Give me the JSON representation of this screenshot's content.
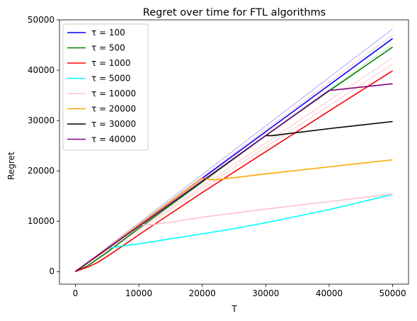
{
  "chart_data": {
    "type": "line",
    "title": "Regret over time for FTL algorithms",
    "xlabel": "T",
    "ylabel": "Regret",
    "xlim": [
      -2500,
      52500
    ],
    "ylim": [
      -2500,
      50000
    ],
    "xticks": [
      0,
      10000,
      20000,
      30000,
      40000,
      50000
    ],
    "yticks": [
      0,
      10000,
      20000,
      30000,
      40000,
      50000
    ],
    "grid": false,
    "legend_position": "top-left",
    "series": [
      {
        "name": "τ = 100",
        "color": "#0000ff",
        "x": [
          0,
          50000
        ],
        "y": [
          0,
          46300
        ]
      },
      {
        "name": "τ = 500",
        "color": "#008000",
        "x": [
          0,
          2000,
          5000,
          10000,
          20000,
          30000,
          40000,
          50000
        ],
        "y": [
          0,
          1200,
          3800,
          8600,
          17800,
          27000,
          35900,
          44600
        ]
      },
      {
        "name": "τ = 1000",
        "color": "#ff0000",
        "x": [
          0,
          2000,
          3500,
          5000,
          7000,
          10000,
          15000,
          20000,
          30000,
          40000,
          50000
        ],
        "y": [
          0,
          900,
          1800,
          3000,
          4700,
          7300,
          11500,
          15700,
          23800,
          31900,
          39900
        ]
      },
      {
        "name": "τ = 5000",
        "color": "#00ffff",
        "x": [
          0,
          5000,
          7000,
          10000,
          15000,
          20000,
          25000,
          30000,
          35000,
          40000,
          45000,
          50000
        ],
        "y": [
          0,
          4600,
          5000,
          5500,
          6500,
          7500,
          8500,
          9700,
          11000,
          12300,
          13800,
          15300
        ]
      },
      {
        "name": "τ = 10000",
        "color": "#ffc0cb",
        "x": [
          0,
          10000,
          12000,
          15000,
          20000,
          30000,
          40000,
          50000
        ],
        "y": [
          0,
          9300,
          9300,
          9800,
          10800,
          12400,
          13900,
          15400
        ]
      },
      {
        "name": "τ = 20000",
        "color": "#ffa500",
        "x": [
          0,
          20000,
          22000,
          30000,
          40000,
          50000
        ],
        "y": [
          0,
          18500,
          18200,
          19400,
          20800,
          22200
        ]
      },
      {
        "name": "τ = 30000",
        "color": "#000000",
        "x": [
          0,
          30000,
          31000,
          40000,
          50000
        ],
        "y": [
          0,
          27000,
          27000,
          28400,
          29800
        ]
      },
      {
        "name": "τ = 40000",
        "color": "#800080",
        "x": [
          0,
          40000,
          41000,
          50000
        ],
        "y": [
          0,
          36000,
          36100,
          37300
        ]
      }
    ],
    "faint_lines": [
      {
        "color": "#6666ff",
        "x": [
          0,
          50000
        ],
        "y": [
          0,
          48200
        ]
      },
      {
        "color": "#ff9999",
        "x": [
          0,
          50000
        ],
        "y": [
          0,
          47000
        ]
      },
      {
        "color": "#99cc99",
        "x": [
          0,
          50000
        ],
        "y": [
          0,
          45200
        ]
      },
      {
        "color": "#ff9999",
        "x": [
          0,
          50000
        ],
        "y": [
          0,
          42500
        ]
      },
      {
        "color": "#ff9999",
        "x": [
          0,
          50000
        ],
        "y": [
          0,
          41200
        ]
      }
    ]
  }
}
